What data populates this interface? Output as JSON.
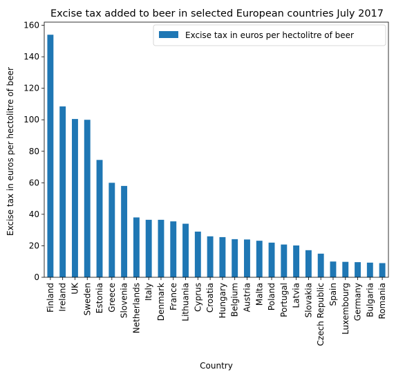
{
  "chart_data": {
    "type": "bar",
    "title": "Excise tax added to beer in selected European countries July 2017",
    "xlabel": "Country",
    "ylabel": "Excise tax in euros per hectolitre of beer",
    "ylim": [
      0,
      162
    ],
    "yticks": [
      0,
      20,
      40,
      60,
      80,
      100,
      120,
      140,
      160
    ],
    "grid": false,
    "legend_position": "top-right",
    "categories": [
      "Finland",
      "Ireland",
      "UK",
      "Sweden",
      "Estonia",
      "Greece",
      "Slovenia",
      "Netherlands",
      "Italy",
      "Denmark",
      "France",
      "Lithuania",
      "Cyprus",
      "Croatia",
      "Hungary",
      "Belgium",
      "Austria",
      "Malta",
      "Poland",
      "Portugal",
      "Latvia",
      "Slovakia",
      "Czech Republic",
      "Spain",
      "Luxembourg",
      "Germany",
      "Bulgaria",
      "Romania"
    ],
    "series": [
      {
        "name": "Excise tax in euros per hectolitre of beer",
        "color": "#1f77b4",
        "values": [
          154,
          108.5,
          100.5,
          100,
          74.5,
          60,
          58,
          38,
          36.5,
          36.5,
          35.5,
          34,
          29,
          26,
          25.5,
          24.2,
          24,
          23.2,
          22,
          20.8,
          20.2,
          17.2,
          15,
          10,
          9.8,
          9.6,
          9.3,
          9
        ]
      }
    ]
  }
}
